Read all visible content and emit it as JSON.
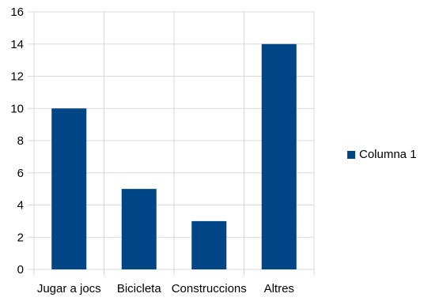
{
  "chart_data": {
    "type": "bar",
    "categories": [
      "Jugar a jocs",
      "Bicicleta",
      "Construccions",
      "Altres"
    ],
    "series": [
      {
        "name": "Columna 1",
        "values": [
          10,
          5,
          3,
          14
        ],
        "color": "#004586"
      }
    ],
    "ylim": [
      0,
      16
    ],
    "y_ticks": [
      0,
      2,
      4,
      6,
      8,
      10,
      12,
      14,
      16
    ],
    "grid": true,
    "legend_position": "right"
  }
}
